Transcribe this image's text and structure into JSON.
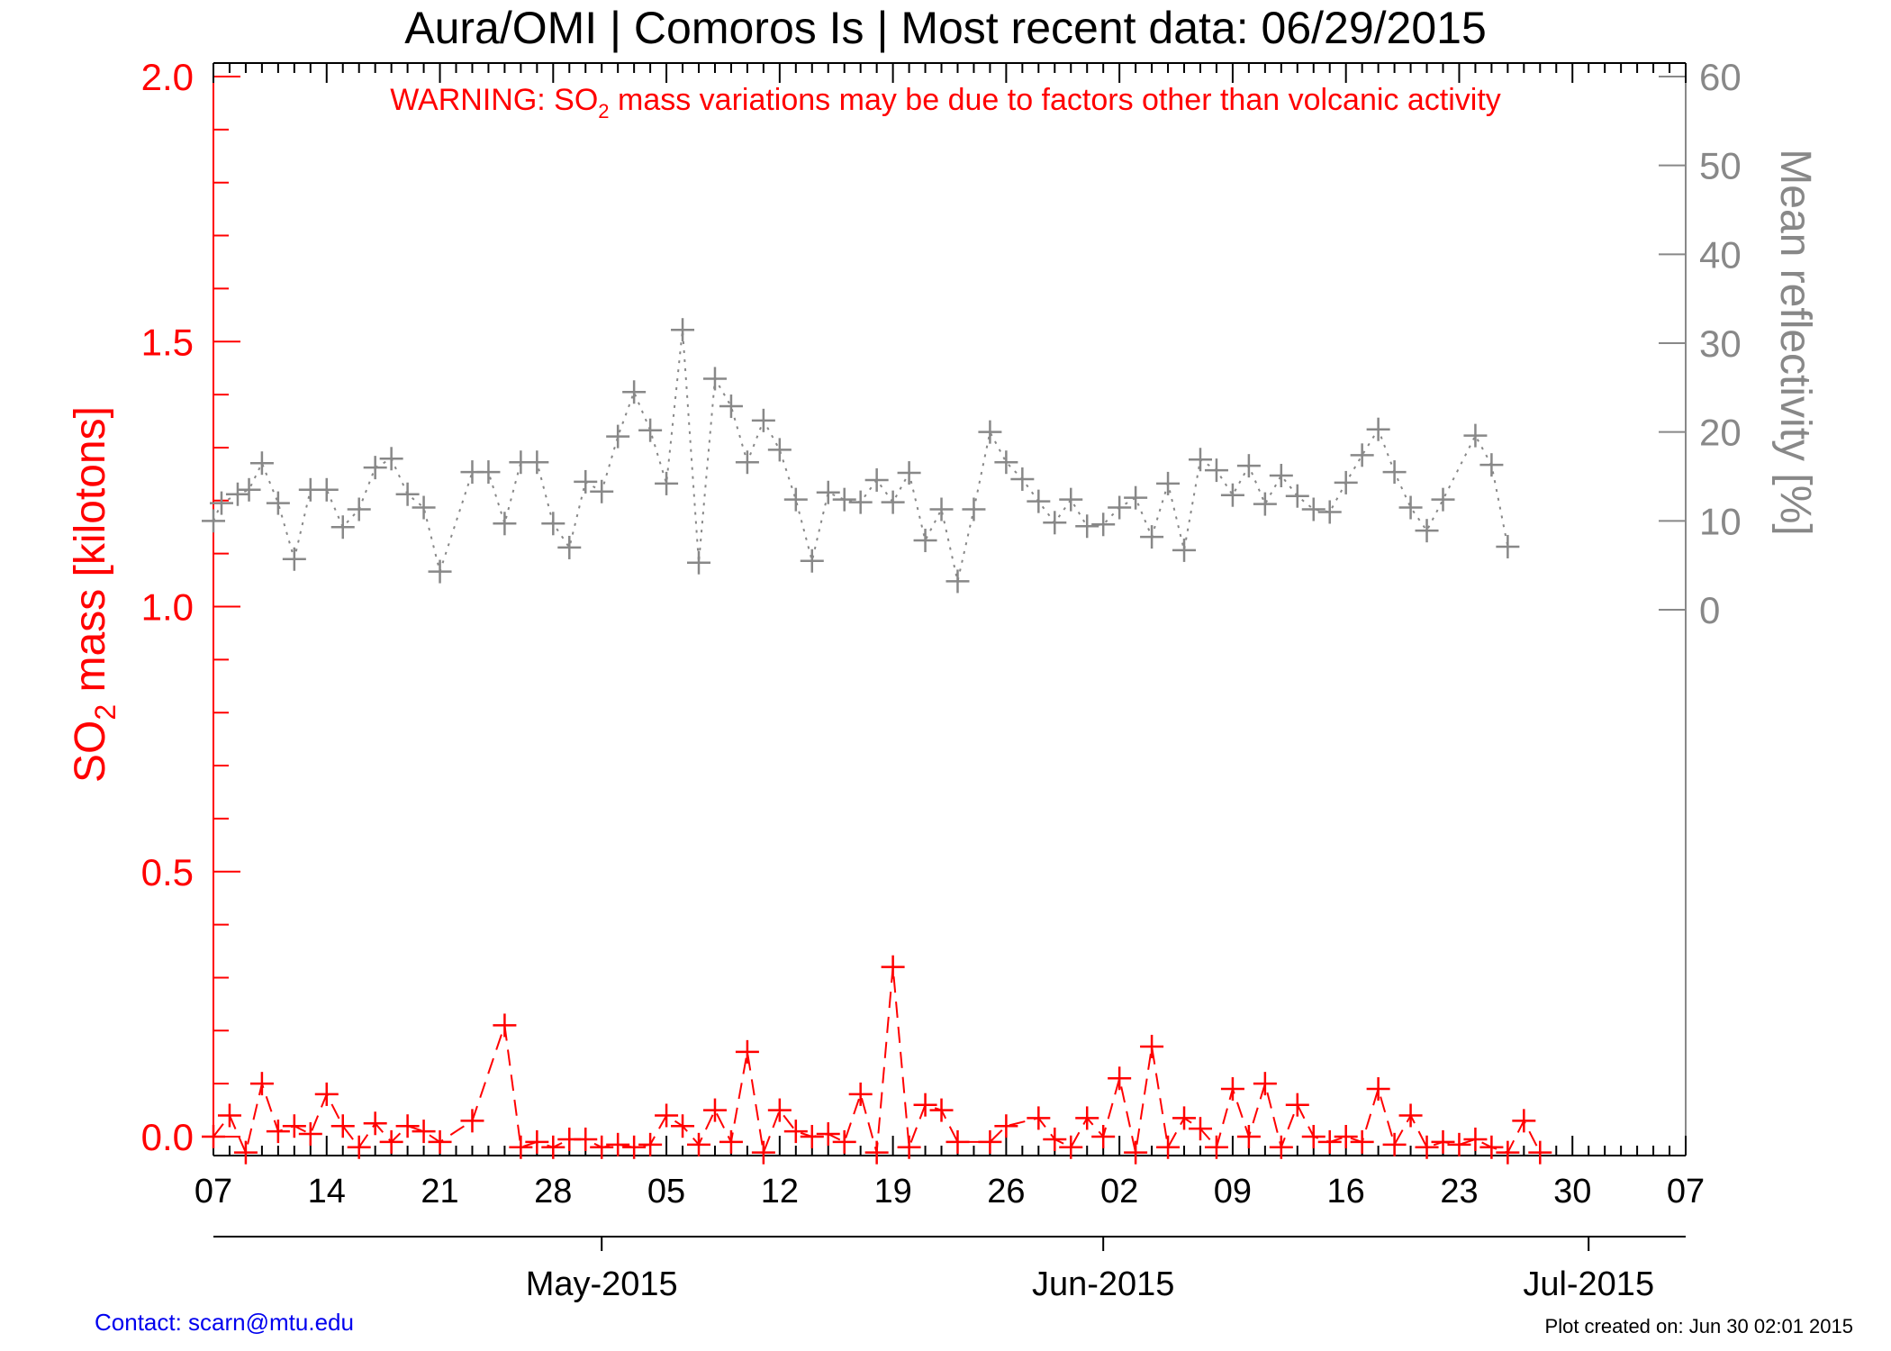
{
  "colors": {
    "so2": "#ff0000",
    "reflectivity": "#888888",
    "axis": "#000000",
    "contact": "#0000ee"
  },
  "chart_data": {
    "type": "line",
    "title": "Aura/OMI | Comoros Is | Most recent data: 06/29/2015",
    "warning": {
      "prefix": "WARNING: SO",
      "sub": "2",
      "suffix": " mass variations may be due to factors other than volcanic activity"
    },
    "ylabel_left": {
      "prefix": "SO",
      "sub": "2",
      "suffix": " mass [kilotons]"
    },
    "ylabel_right": "Mean reflectivity [%]",
    "ylim_left": [
      -0.03,
      2.0
    ],
    "ylim_right": [
      0,
      60
    ],
    "left_ticks": [
      "0.0",
      "0.5",
      "1.0",
      "1.5",
      "2.0"
    ],
    "right_ticks": [
      "0",
      "10",
      "20",
      "30",
      "40",
      "50",
      "60"
    ],
    "x_range_days": [
      0,
      91
    ],
    "x_day_ticks": [
      "07",
      "14",
      "21",
      "28",
      "05",
      "12",
      "19",
      "26",
      "02",
      "09",
      "16",
      "23",
      "30",
      "07"
    ],
    "x_month_ticks": [
      {
        "label": "May-2015",
        "day": 24
      },
      {
        "label": "Jun-2015",
        "day": 55
      },
      {
        "label": "Jul-2015",
        "day": 85
      }
    ],
    "grid": false,
    "series": [
      {
        "axis": "left",
        "style": "dashed",
        "points": [
          [
            0,
            0.0
          ],
          [
            1,
            0.04
          ],
          [
            2,
            -0.03
          ],
          [
            3,
            0.1
          ],
          [
            4,
            0.01
          ],
          [
            5,
            0.02
          ],
          [
            6,
            0.005
          ],
          [
            7,
            0.08
          ],
          [
            8,
            0.02
          ],
          [
            9,
            -0.02
          ],
          [
            10,
            0.025
          ],
          [
            11,
            -0.01
          ],
          [
            12,
            0.02
          ],
          [
            13,
            0.01
          ],
          [
            14,
            -0.01
          ],
          [
            16,
            0.03
          ],
          [
            18,
            0.21
          ],
          [
            19,
            -0.02
          ],
          [
            20,
            -0.01
          ],
          [
            21,
            -0.02
          ],
          [
            22,
            -0.005
          ],
          [
            23,
            -0.005
          ],
          [
            24,
            -0.02
          ],
          [
            25,
            -0.015
          ],
          [
            26,
            -0.02
          ],
          [
            27,
            -0.015
          ],
          [
            28,
            0.04
          ],
          [
            29,
            0.02
          ],
          [
            30,
            -0.015
          ],
          [
            31,
            0.05
          ],
          [
            32,
            -0.01
          ],
          [
            33,
            0.16
          ],
          [
            34,
            -0.03
          ],
          [
            35,
            0.05
          ],
          [
            36,
            0.01
          ],
          [
            37,
            0.0
          ],
          [
            38,
            0.005
          ],
          [
            39,
            -0.01
          ],
          [
            40,
            0.08
          ],
          [
            41,
            -0.03
          ],
          [
            42,
            0.32
          ],
          [
            43,
            -0.02
          ],
          [
            44,
            0.06
          ],
          [
            45,
            0.05
          ],
          [
            46,
            -0.01
          ],
          [
            48,
            -0.01
          ],
          [
            49,
            0.02
          ],
          [
            51,
            0.035
          ],
          [
            52,
            -0.005
          ],
          [
            53,
            -0.02
          ],
          [
            54,
            0.035
          ],
          [
            55,
            0.0
          ],
          [
            56,
            0.11
          ],
          [
            57,
            -0.03
          ],
          [
            58,
            0.17
          ],
          [
            59,
            -0.02
          ],
          [
            60,
            0.035
          ],
          [
            61,
            0.015
          ],
          [
            62,
            -0.02
          ],
          [
            63,
            0.09
          ],
          [
            64,
            0.0
          ],
          [
            65,
            0.1
          ],
          [
            66,
            -0.02
          ],
          [
            67,
            0.06
          ],
          [
            68,
            0.0
          ],
          [
            69,
            -0.01
          ],
          [
            70,
            0.0
          ],
          [
            71,
            -0.01
          ],
          [
            72,
            0.09
          ],
          [
            73,
            -0.015
          ],
          [
            74,
            0.04
          ],
          [
            75,
            -0.02
          ],
          [
            76,
            -0.01
          ],
          [
            77,
            -0.015
          ],
          [
            78,
            -0.005
          ],
          [
            79,
            -0.02
          ],
          [
            80,
            -0.03
          ],
          [
            81,
            0.03
          ],
          [
            82,
            -0.03
          ]
        ]
      },
      {
        "axis": "right",
        "style": "dotted",
        "points": [
          [
            0,
            10
          ],
          [
            0.5,
            12
          ],
          [
            1.5,
            13
          ],
          [
            2.2,
            13.5
          ],
          [
            3,
            16.5
          ],
          [
            4,
            12
          ],
          [
            5,
            5.7
          ],
          [
            6,
            13.5
          ],
          [
            7,
            13.5
          ],
          [
            8,
            9.3
          ],
          [
            9,
            11.3
          ],
          [
            10,
            16
          ],
          [
            11,
            17
          ],
          [
            12,
            13
          ],
          [
            13,
            11.5
          ],
          [
            14,
            4.3
          ],
          [
            16,
            15.5
          ],
          [
            17,
            15.5
          ],
          [
            18,
            9.7
          ],
          [
            19,
            16.6
          ],
          [
            20,
            16.6
          ],
          [
            21,
            9.7
          ],
          [
            22,
            7
          ],
          [
            23,
            14.4
          ],
          [
            24,
            13.3
          ],
          [
            25,
            19.5
          ],
          [
            26,
            24.5
          ],
          [
            27,
            20.2
          ],
          [
            28,
            14.2
          ],
          [
            29,
            31.5
          ],
          [
            30,
            5.3
          ],
          [
            31,
            26
          ],
          [
            32,
            22.9
          ],
          [
            33,
            16.6
          ],
          [
            34,
            21.3
          ],
          [
            35,
            18
          ],
          [
            36,
            12.4
          ],
          [
            37,
            5.5
          ],
          [
            38,
            13.2
          ],
          [
            39,
            12.4
          ],
          [
            40,
            12.1
          ],
          [
            41,
            14.6
          ],
          [
            42,
            12.1
          ],
          [
            43,
            15.4
          ],
          [
            44,
            7.8
          ],
          [
            45,
            11.3
          ],
          [
            46,
            3.2
          ],
          [
            47,
            11.3
          ],
          [
            48,
            20
          ],
          [
            49,
            16.6
          ],
          [
            50,
            14.7
          ],
          [
            51,
            12.2
          ],
          [
            52,
            9.8
          ],
          [
            53,
            12.4
          ],
          [
            54,
            9.4
          ],
          [
            55,
            9.6
          ],
          [
            56,
            11.5
          ],
          [
            57,
            12.6
          ],
          [
            58,
            8.2
          ],
          [
            59,
            14.2
          ],
          [
            60,
            6.7
          ],
          [
            61,
            16.9
          ],
          [
            62,
            15.7
          ],
          [
            63,
            12.9
          ],
          [
            64,
            16.2
          ],
          [
            65,
            11.9
          ],
          [
            66,
            15.1
          ],
          [
            67,
            12.8
          ],
          [
            68,
            11.3
          ],
          [
            69,
            11
          ],
          [
            70,
            14.3
          ],
          [
            71,
            17.4
          ],
          [
            72,
            20.3
          ],
          [
            73,
            15.5
          ],
          [
            74,
            11.5
          ],
          [
            75,
            8.9
          ],
          [
            76,
            12.4
          ],
          [
            78,
            19.6
          ],
          [
            79,
            16.3
          ],
          [
            80,
            7.1
          ]
        ]
      }
    ]
  },
  "footer": {
    "contact": "Contact: scarn@mtu.edu",
    "created": "Plot created on: Jun 30 02:01 2015"
  }
}
